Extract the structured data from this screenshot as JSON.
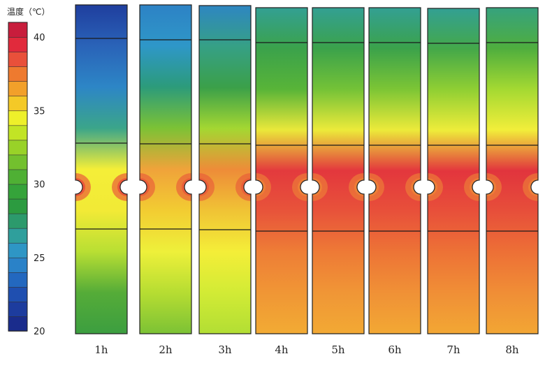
{
  "colorbar": {
    "title": "温度（℃）",
    "ticks": [
      {
        "label": "40",
        "value": 40
      },
      {
        "label": "35",
        "value": 35
      },
      {
        "label": "30",
        "value": 30
      },
      {
        "label": "25",
        "value": 25
      },
      {
        "label": "20",
        "value": 20
      }
    ],
    "range": [
      20,
      41
    ],
    "bands": [
      "#1a2c8c",
      "#1d3c9e",
      "#1f4fb0",
      "#2368bf",
      "#2a82c8",
      "#2e96c5",
      "#2f9f9c",
      "#2c9a6c",
      "#2c9b40",
      "#35a33a",
      "#4fb034",
      "#73c02e",
      "#99d228",
      "#c2e425",
      "#eef02a",
      "#f4c927",
      "#f2a02a",
      "#ee7a2f",
      "#e9503a",
      "#e12a3c",
      "#c81d3c"
    ]
  },
  "strips": [
    {
      "label": "1h",
      "colors": [
        "#1f3e9e",
        "#2a63b8",
        "#2d86c6",
        "#3ba58a",
        "#f4ee38",
        "#f2ea36",
        "#b9df33",
        "#55ac38",
        "#3c9e40"
      ],
      "hole_color": "#e8353a"
    },
    {
      "label": "2h",
      "colors": [
        "#2d82c5",
        "#2e97c8",
        "#2c9b7a",
        "#7cc235",
        "#f0a33a",
        "#f2cc32",
        "#eef03a",
        "#b6dd32",
        "#7cc235"
      ],
      "hole_color": "#e84b3a"
    },
    {
      "label": "3h",
      "colors": [
        "#2e86c2",
        "#36a085",
        "#3ba049",
        "#a4d732",
        "#ee8c38",
        "#f0c335",
        "#f4ee38",
        "#d2eb35",
        "#b2de34"
      ],
      "hole_color": "#e8503a"
    },
    {
      "label": "4h",
      "colors": [
        "#33a093",
        "#3ba24b",
        "#58b438",
        "#eae83a",
        "#e33a3d",
        "#e8543a",
        "#ee7e36",
        "#f09635",
        "#f2ab34"
      ],
      "hole_color": "#ef8c37"
    },
    {
      "label": "5h",
      "colors": [
        "#33a093",
        "#3ba24b",
        "#74c237",
        "#ecea3a",
        "#e3373d",
        "#e8533a",
        "#ee7a36",
        "#f09636",
        "#f2a934"
      ],
      "hole_color": "#ef8c37"
    },
    {
      "label": "6h",
      "colors": [
        "#33a093",
        "#3ba24b",
        "#7cc535",
        "#ecea3a",
        "#e3373d",
        "#e8503a",
        "#ed7436",
        "#f09136",
        "#f2a834"
      ],
      "hole_color": "#ef8c37"
    },
    {
      "label": "7h",
      "colors": [
        "#33a093",
        "#44a849",
        "#90cf33",
        "#eeec3a",
        "#e3353d",
        "#e8503a",
        "#ed7236",
        "#f08f36",
        "#f2a734"
      ],
      "hole_color": "#ef8c37"
    },
    {
      "label": "8h",
      "colors": [
        "#36a27e",
        "#4fae3e",
        "#a4d932",
        "#f2ee3a",
        "#e1343d",
        "#e74f3a",
        "#ed7036",
        "#f08e36",
        "#f2a634"
      ],
      "hole_color": "#ef8c37"
    }
  ]
}
